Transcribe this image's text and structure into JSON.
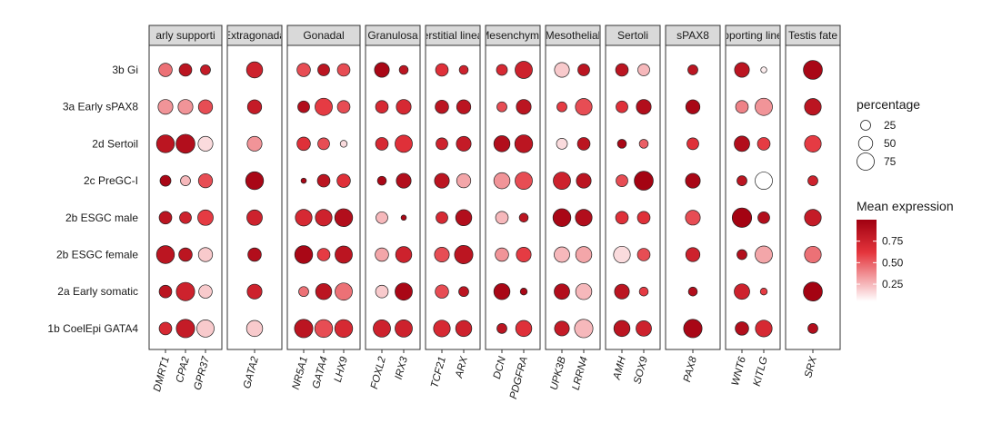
{
  "chart_data": {
    "type": "dot-plot",
    "rows": [
      "3b Gi",
      "3a Early sPAX8",
      "2d Sertoil",
      "2c PreGC-I",
      "2b ESGC male",
      "2b ESGC female",
      "2a Early somatic",
      "1b CoelEpi GATA4"
    ],
    "panels": [
      {
        "title": "arly supporti",
        "genes": [
          {
            "gene": "DMRT1",
            "values": [
              [
                0.45,
                45
              ],
              [
                0.35,
                55
              ],
              [
                0.85,
                80
              ],
              [
                0.95,
                30
              ],
              [
                0.85,
                40
              ],
              [
                0.85,
                80
              ],
              [
                0.85,
                40
              ],
              [
                0.7,
                40
              ]
            ]
          },
          {
            "gene": "CPA2",
            "values": [
              [
                0.85,
                40
              ],
              [
                0.35,
                55
              ],
              [
                0.9,
                90
              ],
              [
                0.25,
                25
              ],
              [
                0.75,
                35
              ],
              [
                0.85,
                45
              ],
              [
                0.75,
                85
              ],
              [
                0.8,
                85
              ]
            ]
          },
          {
            "gene": "GPR37",
            "values": [
              [
                0.8,
                25
              ],
              [
                0.55,
                50
              ],
              [
                0.15,
                55
              ],
              [
                0.55,
                50
              ],
              [
                0.6,
                60
              ],
              [
                0.2,
                50
              ],
              [
                0.2,
                45
              ],
              [
                0.2,
                75
              ]
            ]
          }
        ]
      },
      {
        "title": "Extragonada",
        "genes": [
          {
            "gene": "GATA2",
            "values": [
              [
                0.75,
                65
              ],
              [
                0.8,
                50
              ],
              [
                0.35,
                55
              ],
              [
                0.95,
                80
              ],
              [
                0.75,
                60
              ],
              [
                0.9,
                45
              ],
              [
                0.75,
                55
              ],
              [
                0.2,
                65
              ]
            ]
          }
        ]
      },
      {
        "title": "Gonadal",
        "genes": [
          {
            "gene": "NR5A1",
            "values": [
              [
                0.55,
                45
              ],
              [
                0.9,
                35
              ],
              [
                0.65,
                45
              ],
              [
                0.95,
                7
              ],
              [
                0.7,
                70
              ],
              [
                0.95,
                80
              ],
              [
                0.45,
                25
              ],
              [
                0.85,
                85
              ]
            ]
          },
          {
            "gene": "GATA4",
            "values": [
              [
                0.85,
                35
              ],
              [
                0.6,
                75
              ],
              [
                0.55,
                35
              ],
              [
                0.85,
                40
              ],
              [
                0.75,
                70
              ],
              [
                0.6,
                40
              ],
              [
                0.85,
                65
              ],
              [
                0.55,
                80
              ]
            ]
          },
          {
            "gene": "LHX9",
            "values": [
              [
                0.55,
                40
              ],
              [
                0.55,
                40
              ],
              [
                0.15,
                12
              ],
              [
                0.65,
                45
              ],
              [
                0.9,
                80
              ],
              [
                0.85,
                75
              ],
              [
                0.45,
                75
              ],
              [
                0.7,
                80
              ]
            ]
          }
        ]
      },
      {
        "title": "Granulosa",
        "genes": [
          {
            "gene": "FOXL2",
            "values": [
              [
                0.95,
                55
              ],
              [
                0.7,
                40
              ],
              [
                0.7,
                40
              ],
              [
                0.95,
                20
              ],
              [
                0.25,
                35
              ],
              [
                0.3,
                45
              ],
              [
                0.2,
                40
              ],
              [
                0.75,
                75
              ]
            ]
          },
          {
            "gene": "IRX3",
            "values": [
              [
                0.85,
                20
              ],
              [
                0.7,
                55
              ],
              [
                0.65,
                75
              ],
              [
                0.9,
                55
              ],
              [
                0.95,
                7
              ],
              [
                0.75,
                65
              ],
              [
                0.95,
                75
              ],
              [
                0.75,
                75
              ]
            ]
          }
        ]
      },
      {
        "title": "erstitial linea",
        "genes": [
          {
            "gene": "TCF21",
            "values": [
              [
                0.65,
                40
              ],
              [
                0.85,
                45
              ],
              [
                0.75,
                35
              ],
              [
                0.85,
                55
              ],
              [
                0.7,
                35
              ],
              [
                0.55,
                55
              ],
              [
                0.55,
                45
              ],
              [
                0.7,
                70
              ]
            ]
          },
          {
            "gene": "ARX",
            "values": [
              [
                0.75,
                20
              ],
              [
                0.85,
                50
              ],
              [
                0.8,
                55
              ],
              [
                0.3,
                50
              ],
              [
                0.9,
                65
              ],
              [
                0.85,
                85
              ],
              [
                0.85,
                25
              ],
              [
                0.75,
                65
              ]
            ]
          }
        ]
      },
      {
        "title": "Mesenchyma",
        "genes": [
          {
            "gene": "DCN",
            "values": [
              [
                0.7,
                30
              ],
              [
                0.55,
                25
              ],
              [
                0.9,
                65
              ],
              [
                0.35,
                65
              ],
              [
                0.25,
                40
              ],
              [
                0.35,
                45
              ],
              [
                0.95,
                65
              ],
              [
                0.85,
                25
              ]
            ]
          },
          {
            "gene": "PDGFRA",
            "values": [
              [
                0.75,
                75
              ],
              [
                0.85,
                55
              ],
              [
                0.85,
                80
              ],
              [
                0.55,
                75
              ],
              [
                0.85,
                20
              ],
              [
                0.6,
                55
              ],
              [
                0.95,
                12
              ],
              [
                0.65,
                65
              ]
            ]
          }
        ]
      },
      {
        "title": "Mesothelial",
        "genes": [
          {
            "gene": "UPK3B",
            "values": [
              [
                0.2,
                55
              ],
              [
                0.6,
                25
              ],
              [
                0.15,
                30
              ],
              [
                0.75,
                75
              ],
              [
                0.95,
                80
              ],
              [
                0.25,
                60
              ],
              [
                0.9,
                60
              ],
              [
                0.8,
                55
              ]
            ]
          },
          {
            "gene": "LRRN4",
            "values": [
              [
                0.85,
                35
              ],
              [
                0.55,
                70
              ],
              [
                0.85,
                40
              ],
              [
                0.85,
                55
              ],
              [
                0.9,
                70
              ],
              [
                0.3,
                65
              ],
              [
                0.25,
                65
              ],
              [
                0.25,
                85
              ]
            ]
          }
        ]
      },
      {
        "title": "Sertoli",
        "genes": [
          {
            "gene": "AMH",
            "values": [
              [
                0.85,
                40
              ],
              [
                0.65,
                35
              ],
              [
                0.95,
                20
              ],
              [
                0.55,
                35
              ],
              [
                0.65,
                40
              ],
              [
                0.15,
                70
              ],
              [
                0.85,
                55
              ],
              [
                0.85,
                65
              ]
            ]
          },
          {
            "gene": "SOX9",
            "values": [
              [
                0.25,
                35
              ],
              [
                0.9,
                55
              ],
              [
                0.5,
                20
              ],
              [
                0.98,
                90
              ],
              [
                0.65,
                40
              ],
              [
                0.55,
                40
              ],
              [
                0.6,
                20
              ],
              [
                0.75,
                60
              ]
            ]
          }
        ]
      },
      {
        "title": "sPAX8",
        "genes": [
          {
            "gene": "PAX8",
            "values": [
              [
                0.85,
                25
              ],
              [
                0.95,
                50
              ],
              [
                0.65,
                35
              ],
              [
                0.95,
                55
              ],
              [
                0.55,
                55
              ],
              [
                0.75,
                50
              ],
              [
                0.9,
                20
              ],
              [
                0.95,
                85
              ]
            ]
          }
        ]
      },
      {
        "title": "pporting line",
        "genes": [
          {
            "gene": "WNT6",
            "values": [
              [
                0.85,
                55
              ],
              [
                0.4,
                40
              ],
              [
                0.9,
                60
              ],
              [
                0.85,
                25
              ],
              [
                0.98,
                95
              ],
              [
                0.9,
                25
              ],
              [
                0.75,
                60
              ],
              [
                0.9,
                45
              ]
            ]
          },
          {
            "gene": "KITLG",
            "values": [
              [
                0.1,
                9
              ],
              [
                0.35,
                75
              ],
              [
                0.6,
                40
              ],
              [
                0.05,
                75
              ],
              [
                0.9,
                35
              ],
              [
                0.3,
                75
              ],
              [
                0.6,
                12
              ],
              [
                0.7,
                70
              ]
            ]
          }
        ]
      },
      {
        "title": "Testis fate",
        "genes": [
          {
            "gene": "SRX",
            "values": [
              [
                0.95,
                90
              ],
              [
                0.85,
                70
              ],
              [
                0.6,
                70
              ],
              [
                0.75,
                25
              ],
              [
                0.8,
                70
              ],
              [
                0.45,
                70
              ],
              [
                0.98,
                90
              ],
              [
                0.9,
                25
              ]
            ]
          }
        ]
      }
    ],
    "size_legend": {
      "title": "percentage",
      "breaks": [
        25,
        50,
        75
      ]
    },
    "color_legend": {
      "title": "Mean expression",
      "breaks": [
        0.25,
        0.5,
        0.75
      ],
      "labels": [
        "0.25",
        "0.50",
        "0.75"
      ],
      "range": [
        0.05,
        1.0
      ],
      "low_color": "#ffffff",
      "high_color": "#a00010"
    }
  }
}
